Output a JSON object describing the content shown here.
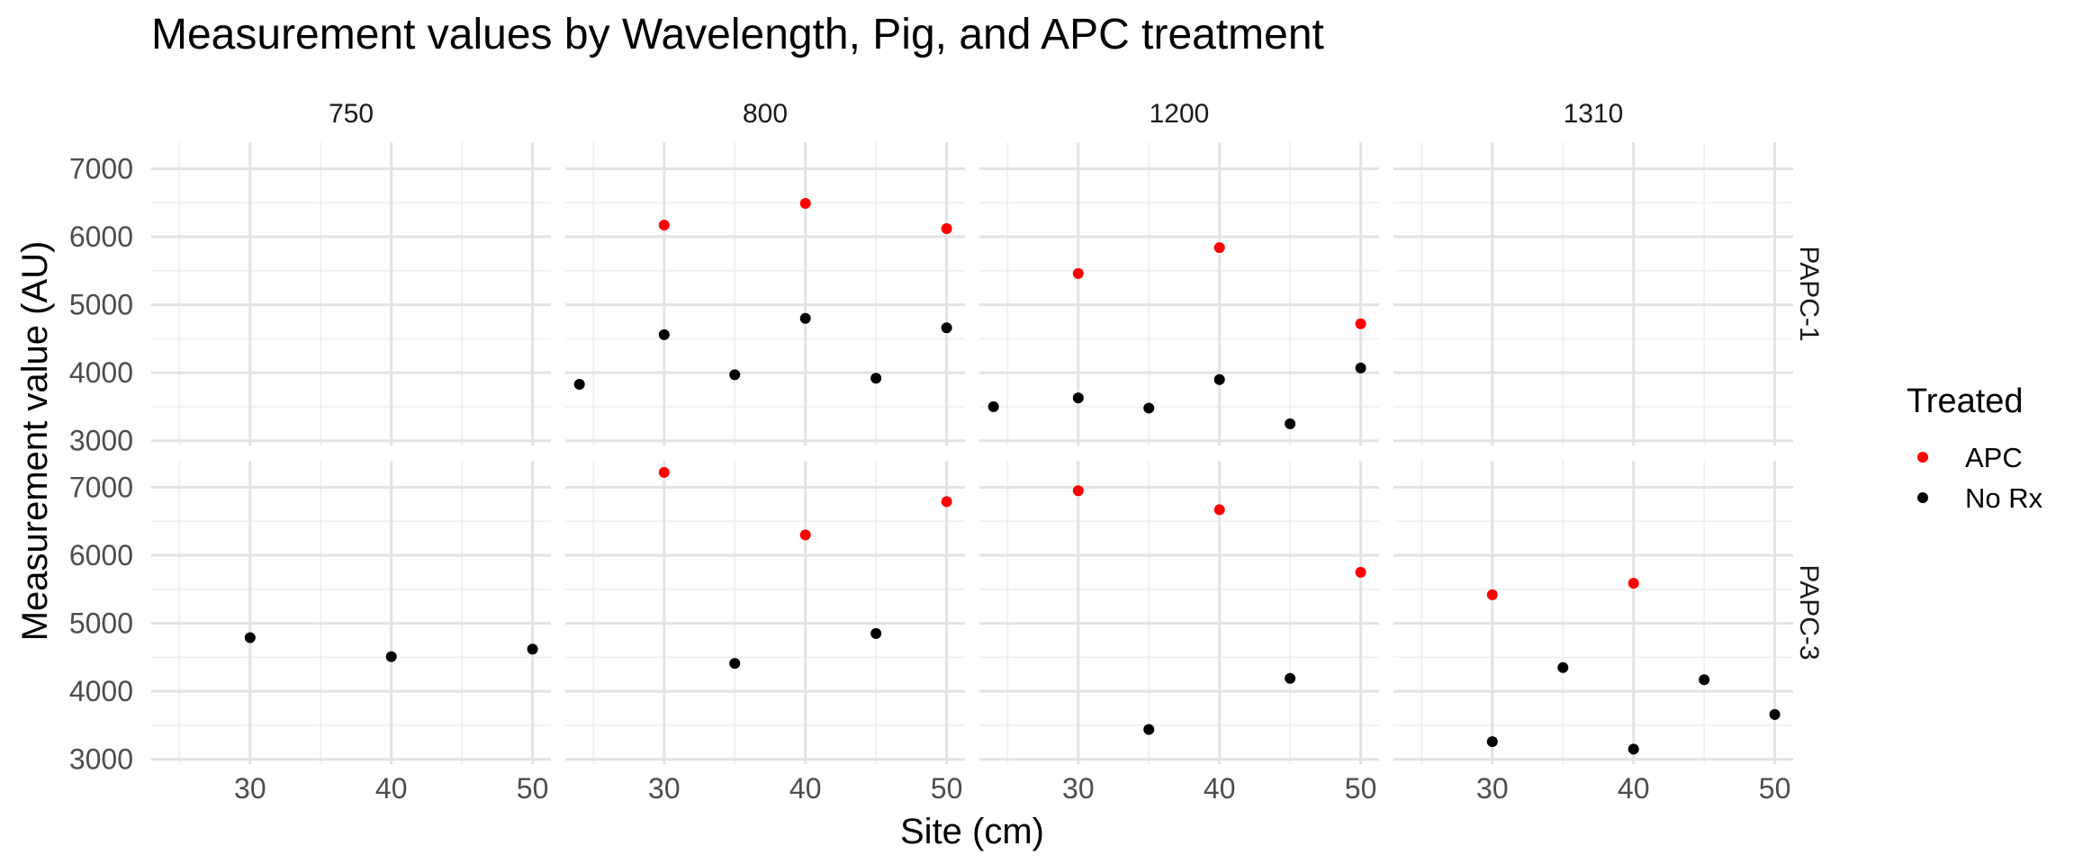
{
  "chart_data": {
    "type": "scatter",
    "title": "Measurement values by Wavelength, Pig, and APC treatment",
    "xlabel": "Site (cm)",
    "ylabel": "Measurement value (AU)",
    "column_facets": [
      "750",
      "800",
      "1200",
      "1310"
    ],
    "row_facets": [
      "PAPC-1",
      "PAPC-3"
    ],
    "xlim": [
      23,
      51.3
    ],
    "ylim": [
      2930,
      7390
    ],
    "x_ticks": [
      30,
      40,
      50
    ],
    "x_minor_ticks": [
      25,
      35,
      45
    ],
    "y_ticks": [
      3000,
      4000,
      5000,
      6000,
      7000
    ],
    "y_minor_ticks": [
      3500,
      4500,
      5500,
      6500
    ],
    "grid": true,
    "legend": {
      "title": "Treated",
      "position": "right",
      "items": [
        {
          "label": "APC",
          "color": "#ff0000"
        },
        {
          "label": "No Rx",
          "color": "#000000"
        }
      ]
    },
    "series": [
      {
        "name": "APC",
        "color": "#ff0000",
        "points": [
          {
            "col": "800",
            "row": "PAPC-1",
            "x": 30,
            "y": 6170
          },
          {
            "col": "800",
            "row": "PAPC-1",
            "x": 40,
            "y": 6490
          },
          {
            "col": "800",
            "row": "PAPC-1",
            "x": 50,
            "y": 6120
          },
          {
            "col": "1200",
            "row": "PAPC-1",
            "x": 30,
            "y": 5460
          },
          {
            "col": "1200",
            "row": "PAPC-1",
            "x": 40,
            "y": 5840
          },
          {
            "col": "1200",
            "row": "PAPC-1",
            "x": 50,
            "y": 4720
          },
          {
            "col": "800",
            "row": "PAPC-3",
            "x": 30,
            "y": 7220
          },
          {
            "col": "800",
            "row": "PAPC-3",
            "x": 40,
            "y": 6300
          },
          {
            "col": "800",
            "row": "PAPC-3",
            "x": 50,
            "y": 6790
          },
          {
            "col": "1200",
            "row": "PAPC-3",
            "x": 30,
            "y": 6950
          },
          {
            "col": "1200",
            "row": "PAPC-3",
            "x": 40,
            "y": 6670
          },
          {
            "col": "1200",
            "row": "PAPC-3",
            "x": 50,
            "y": 5750
          },
          {
            "col": "1310",
            "row": "PAPC-3",
            "x": 30,
            "y": 5420
          },
          {
            "col": "1310",
            "row": "PAPC-3",
            "x": 40,
            "y": 5590
          }
        ]
      },
      {
        "name": "No Rx",
        "color": "#000000",
        "points": [
          {
            "col": "800",
            "row": "PAPC-1",
            "x": 24,
            "y": 3830
          },
          {
            "col": "800",
            "row": "PAPC-1",
            "x": 30,
            "y": 4560
          },
          {
            "col": "800",
            "row": "PAPC-1",
            "x": 35,
            "y": 3970
          },
          {
            "col": "800",
            "row": "PAPC-1",
            "x": 40,
            "y": 4800
          },
          {
            "col": "800",
            "row": "PAPC-1",
            "x": 45,
            "y": 3920
          },
          {
            "col": "800",
            "row": "PAPC-1",
            "x": 50,
            "y": 4660
          },
          {
            "col": "1200",
            "row": "PAPC-1",
            "x": 24,
            "y": 3500
          },
          {
            "col": "1200",
            "row": "PAPC-1",
            "x": 30,
            "y": 3630
          },
          {
            "col": "1200",
            "row": "PAPC-1",
            "x": 35,
            "y": 3480
          },
          {
            "col": "1200",
            "row": "PAPC-1",
            "x": 40,
            "y": 3900
          },
          {
            "col": "1200",
            "row": "PAPC-1",
            "x": 45,
            "y": 3250
          },
          {
            "col": "1200",
            "row": "PAPC-1",
            "x": 50,
            "y": 4070
          },
          {
            "col": "750",
            "row": "PAPC-3",
            "x": 30,
            "y": 4790
          },
          {
            "col": "750",
            "row": "PAPC-3",
            "x": 40,
            "y": 4510
          },
          {
            "col": "750",
            "row": "PAPC-3",
            "x": 50,
            "y": 4620
          },
          {
            "col": "800",
            "row": "PAPC-3",
            "x": 35,
            "y": 4410
          },
          {
            "col": "800",
            "row": "PAPC-3",
            "x": 45,
            "y": 4850
          },
          {
            "col": "1200",
            "row": "PAPC-3",
            "x": 35,
            "y": 3440
          },
          {
            "col": "1200",
            "row": "PAPC-3",
            "x": 45,
            "y": 4190
          },
          {
            "col": "1310",
            "row": "PAPC-3",
            "x": 30,
            "y": 3260
          },
          {
            "col": "1310",
            "row": "PAPC-3",
            "x": 35,
            "y": 4350
          },
          {
            "col": "1310",
            "row": "PAPC-3",
            "x": 40,
            "y": 3150
          },
          {
            "col": "1310",
            "row": "PAPC-3",
            "x": 45,
            "y": 4170
          },
          {
            "col": "1310",
            "row": "PAPC-3",
            "x": 50,
            "y": 3660
          }
        ]
      }
    ]
  }
}
